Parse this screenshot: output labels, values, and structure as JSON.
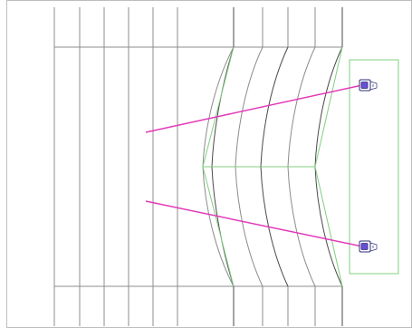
{
  "viewport": {
    "view": "top",
    "background": "#ffffff",
    "colors": {
      "wall_lines": "#8c8c8c",
      "wall_lines_dark": "#4a4a4a",
      "guide_lines": "#7fcf7f",
      "camera_view_lines": "#e33ab8",
      "camera_icon": "#6a4fd6"
    },
    "cameras": [
      {
        "name": "camera-top",
        "icon": "camera-icon"
      },
      {
        "name": "camera-bottom",
        "icon": "camera-icon"
      }
    ]
  }
}
